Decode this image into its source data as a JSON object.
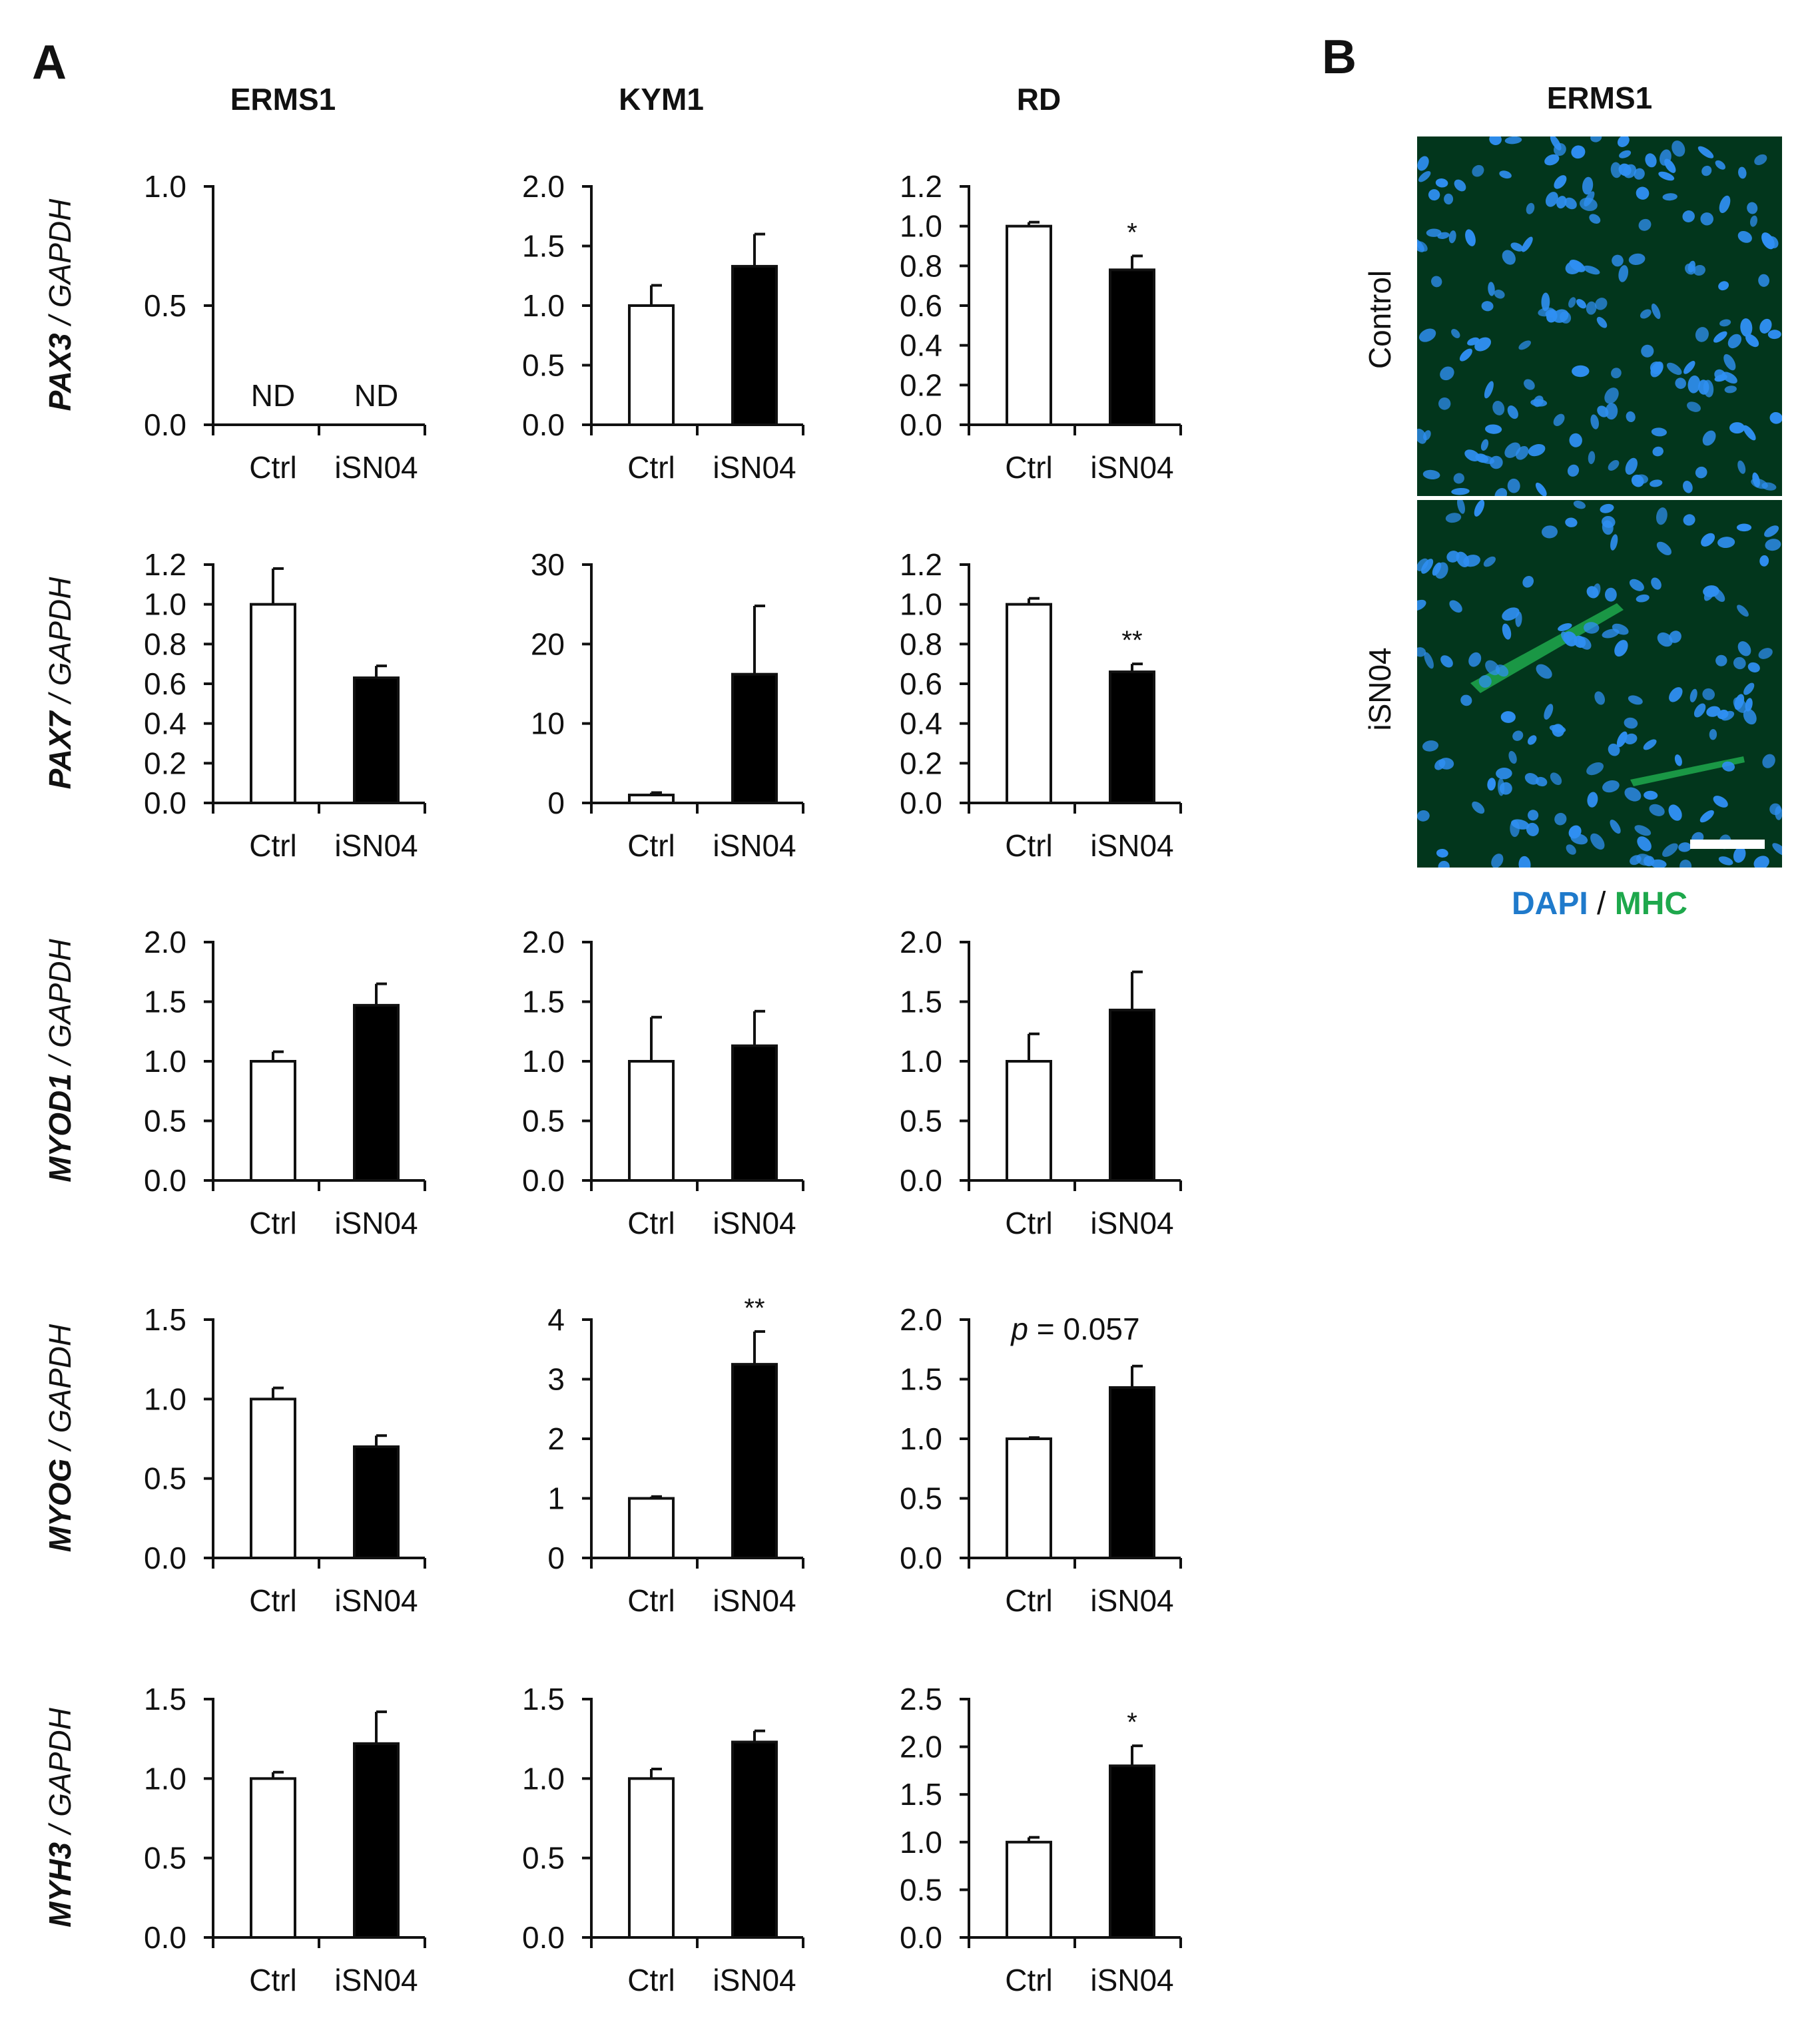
{
  "panels": {
    "a_label": "A",
    "b_label": "B",
    "column_titles": [
      "ERMS1",
      "KYM1",
      "RD"
    ],
    "b_title": "ERMS1"
  },
  "colors": {
    "ctrl_fill": "#ffffff",
    "isn04_fill": "#000000",
    "dapi": "#1f7acb",
    "mhc": "#1ea84c",
    "micro_bg": "#02361c",
    "nuclei": "#2f8ff2"
  },
  "microscopy": {
    "rows": [
      "Control",
      "iSN04"
    ],
    "legend_dapi": "DAPI",
    "legend_slash": "/",
    "legend_mhc": "MHC"
  },
  "chart_data": [
    {
      "type": "bar",
      "gene": "PAX3",
      "ylabel_suffix": " / GAPDH",
      "cell_line": "ERMS1",
      "categories": [
        "Ctrl",
        "iSN04"
      ],
      "values": [
        null,
        null
      ],
      "errors": [
        0,
        0
      ],
      "value_labels": [
        "ND",
        "ND"
      ],
      "ylim": [
        0,
        1.0
      ],
      "yticks": [
        0.0,
        0.5,
        1.0
      ],
      "ytick_labels": [
        "0.0",
        "0.5",
        "1.0"
      ],
      "annotation": ""
    },
    {
      "type": "bar",
      "gene": "PAX3",
      "ylabel_suffix": " / GAPDH",
      "cell_line": "KYM1",
      "categories": [
        "Ctrl",
        "iSN04"
      ],
      "values": [
        1.0,
        1.33
      ],
      "errors": [
        0.17,
        0.27
      ],
      "ylim": [
        0,
        2.0
      ],
      "yticks": [
        0.0,
        0.5,
        1.0,
        1.5,
        2.0
      ],
      "ytick_labels": [
        "0.0",
        "0.5",
        "1.0",
        "1.5",
        "2.0"
      ],
      "annotation": ""
    },
    {
      "type": "bar",
      "gene": "PAX3",
      "ylabel_suffix": " / GAPDH",
      "cell_line": "RD",
      "categories": [
        "Ctrl",
        "iSN04"
      ],
      "values": [
        1.0,
        0.78
      ],
      "errors": [
        0.02,
        0.07
      ],
      "ylim": [
        0,
        1.2
      ],
      "yticks": [
        0.0,
        0.2,
        0.4,
        0.6,
        0.8,
        1.0,
        1.2
      ],
      "ytick_labels": [
        "0.0",
        "0.2",
        "0.4",
        "0.6",
        "0.8",
        "1.0",
        "1.2"
      ],
      "annotation": "*"
    },
    {
      "type": "bar",
      "gene": "PAX7",
      "ylabel_suffix": " / GAPDH",
      "cell_line": "ERMS1",
      "categories": [
        "Ctrl",
        "iSN04"
      ],
      "values": [
        1.0,
        0.63
      ],
      "errors": [
        0.18,
        0.06
      ],
      "ylim": [
        0,
        1.2
      ],
      "yticks": [
        0.0,
        0.2,
        0.4,
        0.6,
        0.8,
        1.0,
        1.2
      ],
      "ytick_labels": [
        "0.0",
        "0.2",
        "0.4",
        "0.6",
        "0.8",
        "1.0",
        "1.2"
      ],
      "annotation": ""
    },
    {
      "type": "bar",
      "gene": "PAX7",
      "ylabel_suffix": " / GAPDH",
      "cell_line": "KYM1",
      "categories": [
        "Ctrl",
        "iSN04"
      ],
      "values": [
        1.0,
        16.2
      ],
      "errors": [
        0.3,
        8.6
      ],
      "ylim": [
        0,
        30
      ],
      "yticks": [
        0,
        10,
        20,
        30
      ],
      "ytick_labels": [
        "0",
        "10",
        "20",
        "30"
      ],
      "annotation": ""
    },
    {
      "type": "bar",
      "gene": "PAX7",
      "ylabel_suffix": " / GAPDH",
      "cell_line": "RD",
      "categories": [
        "Ctrl",
        "iSN04"
      ],
      "values": [
        1.0,
        0.66
      ],
      "errors": [
        0.03,
        0.04
      ],
      "ylim": [
        0,
        1.2
      ],
      "yticks": [
        0.0,
        0.2,
        0.4,
        0.6,
        0.8,
        1.0,
        1.2
      ],
      "ytick_labels": [
        "0.0",
        "0.2",
        "0.4",
        "0.6",
        "0.8",
        "1.0",
        "1.2"
      ],
      "annotation": "**"
    },
    {
      "type": "bar",
      "gene": "MYOD1",
      "ylabel_suffix": " / GAPDH",
      "cell_line": "ERMS1",
      "categories": [
        "Ctrl",
        "iSN04"
      ],
      "values": [
        1.0,
        1.47
      ],
      "errors": [
        0.08,
        0.18
      ],
      "ylim": [
        0,
        2.0
      ],
      "yticks": [
        0.0,
        0.5,
        1.0,
        1.5,
        2.0
      ],
      "ytick_labels": [
        "0.0",
        "0.5",
        "1.0",
        "1.5",
        "2.0"
      ],
      "annotation": ""
    },
    {
      "type": "bar",
      "gene": "MYOD1",
      "ylabel_suffix": " / GAPDH",
      "cell_line": "KYM1",
      "categories": [
        "Ctrl",
        "iSN04"
      ],
      "values": [
        1.0,
        1.13
      ],
      "errors": [
        0.37,
        0.29
      ],
      "ylim": [
        0,
        2.0
      ],
      "yticks": [
        0.0,
        0.5,
        1.0,
        1.5,
        2.0
      ],
      "ytick_labels": [
        "0.0",
        "0.5",
        "1.0",
        "1.5",
        "2.0"
      ],
      "annotation": ""
    },
    {
      "type": "bar",
      "gene": "MYOD1",
      "ylabel_suffix": " / GAPDH",
      "cell_line": "RD",
      "categories": [
        "Ctrl",
        "iSN04"
      ],
      "values": [
        1.0,
        1.43
      ],
      "errors": [
        0.23,
        0.32
      ],
      "ylim": [
        0,
        2.0
      ],
      "yticks": [
        0.0,
        0.5,
        1.0,
        1.5,
        2.0
      ],
      "ytick_labels": [
        "0.0",
        "0.5",
        "1.0",
        "1.5",
        "2.0"
      ],
      "annotation": ""
    },
    {
      "type": "bar",
      "gene": "MYOG",
      "ylabel_suffix": " / GAPDH",
      "cell_line": "ERMS1",
      "categories": [
        "Ctrl",
        "iSN04"
      ],
      "values": [
        1.0,
        0.7
      ],
      "errors": [
        0.07,
        0.07
      ],
      "ylim": [
        0,
        1.5
      ],
      "yticks": [
        0.0,
        0.5,
        1.0,
        1.5
      ],
      "ytick_labels": [
        "0.0",
        "0.5",
        "1.0",
        "1.5"
      ],
      "annotation": ""
    },
    {
      "type": "bar",
      "gene": "MYOG",
      "ylabel_suffix": " / GAPDH",
      "cell_line": "KYM1",
      "categories": [
        "Ctrl",
        "iSN04"
      ],
      "values": [
        1.0,
        3.25
      ],
      "errors": [
        0.03,
        0.55
      ],
      "ylim": [
        0,
        4
      ],
      "yticks": [
        0,
        1,
        2,
        3,
        4
      ],
      "ytick_labels": [
        "0",
        "1",
        "2",
        "3",
        "4"
      ],
      "annotation": "**"
    },
    {
      "type": "bar",
      "gene": "MYOG",
      "ylabel_suffix": " / GAPDH",
      "cell_line": "RD",
      "categories": [
        "Ctrl",
        "iSN04"
      ],
      "values": [
        1.0,
        1.43
      ],
      "errors": [
        0.01,
        0.18
      ],
      "ylim": [
        0,
        2.0
      ],
      "yticks": [
        0.0,
        0.5,
        1.0,
        1.5,
        2.0
      ],
      "ytick_labels": [
        "0.0",
        "0.5",
        "1.0",
        "1.5",
        "2.0"
      ],
      "annotation": "",
      "p_text_italic": "p",
      "p_text_rest": " = 0.057"
    },
    {
      "type": "bar",
      "gene": "MYH3",
      "ylabel_suffix": " / GAPDH",
      "cell_line": "ERMS1",
      "categories": [
        "Ctrl",
        "iSN04"
      ],
      "values": [
        1.0,
        1.22
      ],
      "errors": [
        0.04,
        0.2
      ],
      "ylim": [
        0,
        1.5
      ],
      "yticks": [
        0.0,
        0.5,
        1.0,
        1.5
      ],
      "ytick_labels": [
        "0.0",
        "0.5",
        "1.0",
        "1.5"
      ],
      "annotation": ""
    },
    {
      "type": "bar",
      "gene": "MYH3",
      "ylabel_suffix": " / GAPDH",
      "cell_line": "KYM1",
      "categories": [
        "Ctrl",
        "iSN04"
      ],
      "values": [
        1.0,
        1.23
      ],
      "errors": [
        0.06,
        0.07
      ],
      "ylim": [
        0,
        1.5
      ],
      "yticks": [
        0.0,
        0.5,
        1.0,
        1.5
      ],
      "ytick_labels": [
        "0.0",
        "0.5",
        "1.0",
        "1.5"
      ],
      "annotation": ""
    },
    {
      "type": "bar",
      "gene": "MYH3",
      "ylabel_suffix": " / GAPDH",
      "cell_line": "RD",
      "categories": [
        "Ctrl",
        "iSN04"
      ],
      "values": [
        1.0,
        1.8
      ],
      "errors": [
        0.05,
        0.21
      ],
      "ylim": [
        0,
        2.5
      ],
      "yticks": [
        0.0,
        0.5,
        1.0,
        1.5,
        2.0,
        2.5
      ],
      "ytick_labels": [
        "0.0",
        "0.5",
        "1.0",
        "1.5",
        "2.0",
        "2.5"
      ],
      "annotation": "*"
    }
  ]
}
